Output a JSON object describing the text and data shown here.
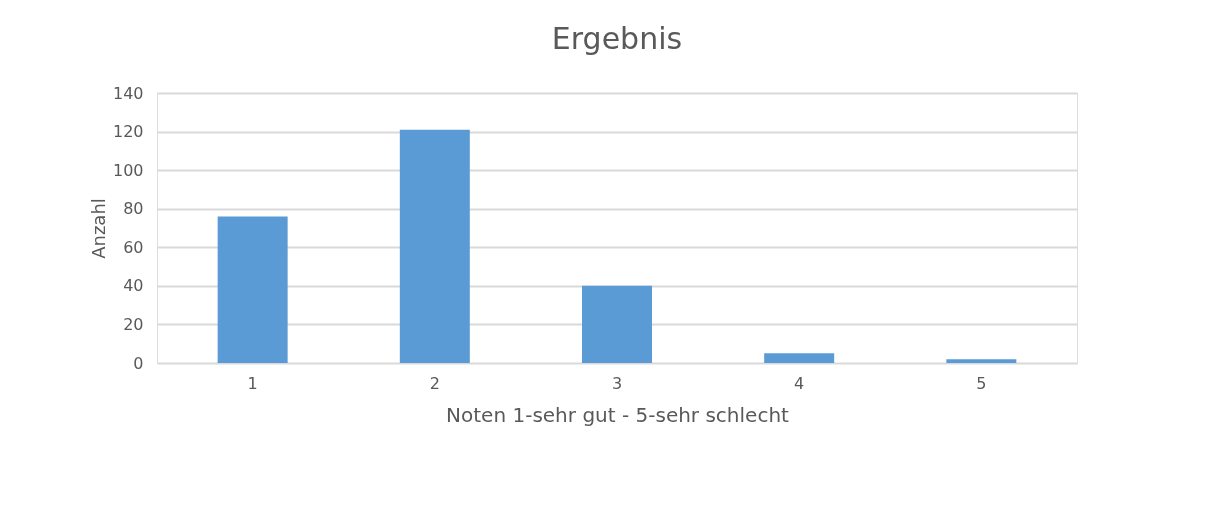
{
  "chart_data": {
    "type": "bar",
    "title": "Ergebnis",
    "xlabel": "Noten 1-sehr gut - 5-sehr schlecht",
    "ylabel": "Anzahl",
    "categories": [
      "1",
      "2",
      "3",
      "4",
      "5"
    ],
    "values": [
      76,
      121,
      40,
      5,
      2
    ],
    "color": "#5b9bd5",
    "ylim": [
      0,
      140
    ],
    "yticks": [
      0,
      20,
      40,
      60,
      80,
      100,
      120,
      140
    ],
    "grid": "y"
  }
}
